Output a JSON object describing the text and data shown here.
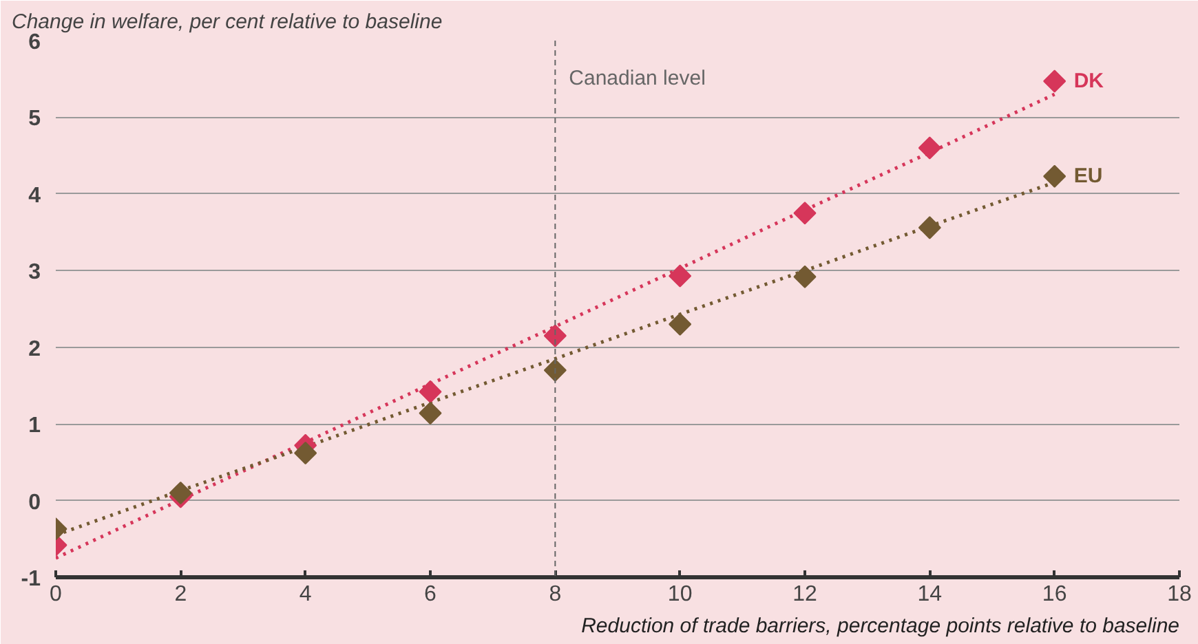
{
  "chart_data": {
    "type": "scatter",
    "title": "Change in welfare, per cent relative to baseline",
    "xlabel": "Reduction of trade barriers, percentage points relative to baseline",
    "x": [
      0,
      2,
      4,
      6,
      8,
      10,
      12,
      14,
      16
    ],
    "series": [
      {
        "name": "DK",
        "color": "#d6365a",
        "values": [
          -0.58,
          0.05,
          0.72,
          1.42,
          2.15,
          2.93,
          3.75,
          4.6,
          5.47
        ]
      },
      {
        "name": "EU",
        "color": "#735a32",
        "values": [
          -0.37,
          0.1,
          0.62,
          1.14,
          1.7,
          2.3,
          2.92,
          3.56,
          4.23
        ]
      },
      {
        "type": "line",
        "color": "#d6365a",
        "values": [
          -0.75,
          0.01,
          0.76,
          1.52,
          2.27,
          3.03,
          3.79,
          4.54,
          5.3
        ],
        "line_style": "dotted",
        "marker": "none"
      },
      {
        "type": "line",
        "color": "#735a32",
        "values": [
          -0.45,
          0.13,
          0.7,
          1.28,
          1.85,
          2.43,
          3.0,
          3.58,
          4.15
        ],
        "line_style": "dotted",
        "marker": "none"
      }
    ],
    "marker": "diamond",
    "xlim": [
      0,
      18
    ],
    "xticks": [
      0,
      2,
      4,
      6,
      8,
      10,
      12,
      14,
      16,
      18
    ],
    "ylim": [
      -1,
      6
    ],
    "yticks": [
      -1,
      0,
      1,
      2,
      3,
      4,
      5,
      6
    ],
    "grid": "y",
    "ref_lines": [
      {
        "axis": "x",
        "value": 8,
        "label": "Canadian level",
        "color": "#666666",
        "line_style": "dashed"
      }
    ]
  }
}
